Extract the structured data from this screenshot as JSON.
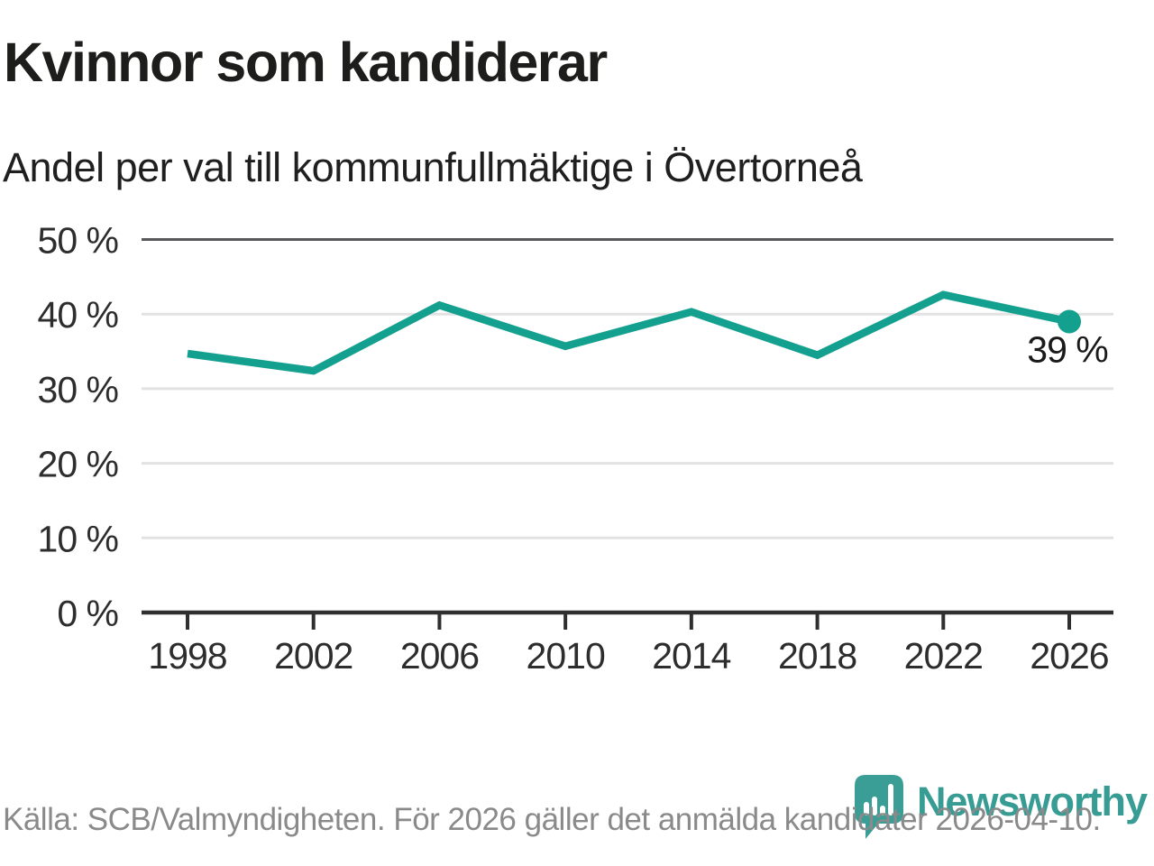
{
  "header": {
    "title": "Kvinnor som kandiderar",
    "subtitle": "Andel per val till kommunfullmäktige i Övertorneå"
  },
  "chart_data": {
    "type": "line",
    "title": "Kvinnor som kandiderar",
    "subtitle": "Andel per val till kommunfullmäktige i Övertorneå",
    "categories": [
      "1998",
      "2002",
      "2006",
      "2010",
      "2014",
      "2018",
      "2022",
      "2026"
    ],
    "values": [
      34.7,
      32.4,
      41.2,
      35.7,
      40.3,
      34.5,
      42.6,
      39
    ],
    "unit": "%",
    "xlabel": "",
    "ylabel": "",
    "ylim": [
      0,
      50
    ],
    "yticks": [
      0,
      10,
      20,
      30,
      40,
      50
    ],
    "ytick_suffix": " %",
    "grid": "horizontal",
    "legend_position": "none",
    "end_point_label": "39 %",
    "marker_on_last_point": true
  },
  "footer": {
    "source": "Källa: SCB/Valmyndigheten. För 2026 gäller det anmälda kandidater 2026-04-10.",
    "brand": "Newsworthy"
  },
  "colors": {
    "line_teal": "#13a08f",
    "brand_teal": "#3b9e96",
    "grid_light": "#e2e2e2",
    "grid_dark": "#58585b",
    "axis_dark": "#2f2f2f",
    "tick_label": "#2d2d2d",
    "annotation": "#1a1a1a",
    "text_dark": "#1d1d1b",
    "text_gray": "#8a8a8a"
  }
}
